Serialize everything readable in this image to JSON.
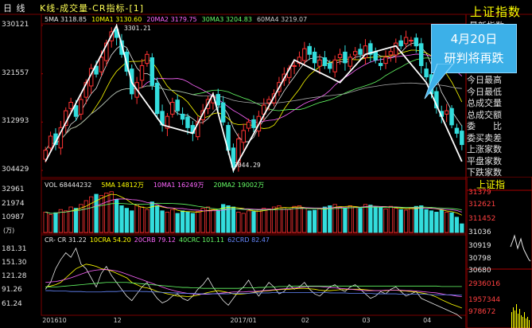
{
  "header": {
    "app_title": "日 线",
    "chart_title": "K线-成交量-CR指标-[1]"
  },
  "ma_legend": [
    {
      "text": "5MA 3118.85",
      "color": "#e8e8e8"
    },
    {
      "text": "10MA1 3130.60",
      "color": "#ffff00"
    },
    {
      "text": "20MA2 3179.75",
      "color": "#ff66ff"
    },
    {
      "text": "30MA3 3204.83",
      "color": "#66ff66"
    },
    {
      "text": "60MA4 3219.07",
      "color": "#cccccc"
    }
  ],
  "vol_legend": [
    {
      "text": "VOL 68444232",
      "color": "#e8e8e8"
    },
    {
      "text": "5MA 14812万",
      "color": "#ffff00"
    },
    {
      "text": "10MA1 16249万",
      "color": "#ff66ff"
    },
    {
      "text": "20MA2 19002万",
      "color": "#66ff66"
    }
  ],
  "cr_legend": [
    {
      "text": "CR- CR 31.22",
      "color": "#e8e8e8"
    },
    {
      "text": "10CRA 54.20",
      "color": "#ffff00"
    },
    {
      "text": "20CRB 79.12",
      "color": "#ff66ff"
    },
    {
      "text": "40CRC 101.11",
      "color": "#66ff66"
    },
    {
      "text": "62CRD 82.47",
      "color": "#6688ff"
    }
  ],
  "callout": {
    "line1": "4月20日",
    "line2": "研判将再跌"
  },
  "index_label": "上证指数",
  "side_info": [
    "今日最高",
    "今日最低",
    "总成交量",
    "总成交额",
    "委　　比",
    "委买卖差",
    "上涨家数",
    "平盘家数",
    "下跌家数"
  ],
  "side_info_top_partial": "最新指数",
  "mini_panel": {
    "title": "上证指",
    "labels": [
      "31379",
      "312621",
      "311452",
      "31036",
      "30919",
      "30798",
      "30680",
      "2936016",
      "1957344",
      "978672"
    ]
  },
  "chart_data": [
    {
      "type": "candlestick",
      "title": "K线",
      "y_ticks": [
        304429,
        312993,
        321557,
        330121
      ],
      "ylim": [
        3044.29,
        3301.21
      ],
      "annotations": [
        {
          "text": "3301.21",
          "x": "2016-11-29",
          "y": 3301.21
        },
        {
          "text": "3044.29",
          "x": "2017-01-16",
          "y": 3044.29
        }
      ],
      "x_ticks": [
        "201610",
        "12",
        "2017/01",
        "02",
        "03",
        "04"
      ],
      "close": [
        3080,
        3105,
        3090,
        3120,
        3150,
        3165,
        3140,
        3170,
        3200,
        3225,
        3215,
        3245,
        3270,
        3290,
        3280,
        3250,
        3220,
        3180,
        3200,
        3230,
        3250,
        3195,
        3145,
        3125,
        3140,
        3165,
        3150,
        3135,
        3120,
        3110,
        3130,
        3150,
        3170,
        3175,
        3160,
        3130,
        3080,
        3050,
        3100,
        3115,
        3130,
        3120,
        3140,
        3160,
        3170,
        3180,
        3200,
        3215,
        3225,
        3230,
        3245,
        3260,
        3250,
        3235,
        3240,
        3230,
        3225,
        3240,
        3250,
        3235,
        3245,
        3255,
        3250,
        3265,
        3250,
        3240,
        3230,
        3245,
        3255,
        3270,
        3265,
        3280,
        3275,
        3265,
        3230,
        3210,
        3180,
        3155,
        3140,
        3150,
        3125,
        3110,
        3090
      ]
    },
    {
      "type": "bar",
      "title": "VOL",
      "y_ticks": [
        10987,
        21974,
        32961
      ],
      "ylim": [
        0,
        35000
      ],
      "unit_label": "(万)",
      "values": [
        16000,
        14000,
        15500,
        18000,
        17000,
        20000,
        19000,
        22000,
        25000,
        28000,
        30000,
        29000,
        31000,
        32000,
        26000,
        21000,
        19000,
        17000,
        22000,
        20000,
        18000,
        24000,
        21000,
        17000,
        16000,
        18000,
        15000,
        17000,
        16000,
        15000,
        16500,
        19000,
        20000,
        18000,
        17500,
        22000,
        21000,
        20000,
        16000,
        15000,
        17000,
        16500,
        18000,
        19000,
        18500,
        20000,
        21000,
        19500,
        18000,
        20500,
        21000,
        19000,
        17000,
        17500,
        18500,
        20000,
        21000,
        22000,
        20000,
        19000,
        21000,
        20000,
        19000,
        22000,
        21500,
        20000,
        19500,
        18500,
        20500,
        19000,
        18000,
        17500,
        19000,
        20500,
        21000,
        18000,
        17000,
        16000,
        17500,
        16000,
        15500,
        12000,
        6800
      ]
    },
    {
      "type": "line",
      "title": "CR",
      "y_ticks": [
        61.24,
        91.26,
        121.28,
        151.3,
        181.31
      ],
      "ylim": [
        45,
        195
      ],
      "series": [
        {
          "name": "CR",
          "color": "#e8e8e8",
          "values": [
            95,
            110,
            140,
            160,
            175,
            165,
            185,
            150,
            140,
            120,
            100,
            130,
            145,
            125,
            110,
            95,
            80,
            70,
            85,
            100,
            110,
            90,
            75,
            65,
            70,
            80,
            85,
            75,
            70,
            80,
            95,
            105,
            120,
            100,
            85,
            70,
            60,
            75,
            90,
            100,
            115,
            95,
            80,
            95,
            110,
            100,
            85,
            90,
            105,
            95,
            100,
            110,
            95,
            85,
            80,
            90,
            100,
            105,
            95,
            90,
            100,
            105,
            95,
            85,
            75,
            80,
            90,
            85,
            95,
            100,
            90,
            80,
            85,
            90,
            75,
            70,
            65,
            60,
            55,
            50,
            45,
            40,
            31
          ]
        },
        {
          "name": "CRA",
          "color": "#ffff00",
          "values": [
            100,
            102,
            105,
            110,
            120,
            130,
            140,
            145,
            150,
            148,
            145,
            140,
            138,
            135,
            130,
            125,
            120,
            110,
            105,
            100,
            98,
            95,
            90,
            88,
            85,
            83,
            80,
            80,
            79,
            80,
            82,
            85,
            88,
            90,
            92,
            90,
            88,
            85,
            84,
            85,
            86,
            88,
            90,
            91,
            92,
            93,
            94,
            95,
            95,
            96,
            97,
            97,
            96,
            95,
            93,
            92,
            92,
            93,
            94,
            94,
            95,
            95,
            95,
            94,
            93,
            92,
            92,
            92,
            93,
            93,
            92,
            91,
            90,
            89,
            87,
            85,
            82,
            78,
            72,
            67,
            62,
            58,
            54
          ]
        },
        {
          "name": "CRB",
          "color": "#ff66ff",
          "values": [
            110,
            111,
            112,
            114,
            117,
            120,
            124,
            128,
            132,
            135,
            137,
            138,
            138,
            137,
            135,
            132,
            128,
            124,
            120,
            116,
            112,
            108,
            104,
            100,
            96,
            93,
            90,
            88,
            86,
            85,
            84,
            84,
            84,
            85,
            86,
            87,
            88,
            89,
            89,
            89,
            90,
            90,
            91,
            92,
            93,
            94,
            95,
            96,
            97,
            98,
            99,
            100,
            101,
            101,
            101,
            100,
            99,
            98,
            97,
            96,
            95,
            94,
            93,
            92,
            92,
            92,
            92,
            93,
            93,
            93,
            93,
            92,
            92,
            91,
            90,
            89,
            88,
            87,
            85,
            83,
            82,
            80,
            79
          ]
        },
        {
          "name": "CRC",
          "color": "#66ff66",
          "values": [
            100,
            100,
            100,
            101,
            102,
            103,
            104,
            105,
            106,
            107,
            108,
            109,
            110,
            110,
            110,
            110,
            110,
            109,
            108,
            107,
            106,
            105,
            104,
            103,
            102,
            101,
            100,
            99,
            99,
            98,
            98,
            97,
            97,
            97,
            97,
            97,
            97,
            97,
            97,
            98,
            98,
            98,
            99,
            99,
            100,
            100,
            101,
            101,
            101,
            102,
            102,
            102,
            102,
            102,
            102,
            102,
            102,
            102,
            102,
            102,
            102,
            102,
            102,
            102,
            102,
            102,
            102,
            102,
            102,
            102,
            102,
            102,
            102,
            102,
            102,
            102,
            102,
            102,
            101,
            101,
            101,
            101,
            101
          ]
        },
        {
          "name": "CRD",
          "color": "#6688ff",
          "values": [
            92,
            92,
            91,
            91,
            91,
            90,
            90,
            90,
            89,
            89,
            89,
            89,
            90,
            90,
            90,
            91,
            91,
            91,
            91,
            90,
            90,
            89,
            89,
            88,
            88,
            87,
            87,
            86,
            86,
            86,
            85,
            85,
            85,
            85,
            85,
            85,
            85,
            86,
            86,
            86,
            86,
            87,
            87,
            87,
            87,
            88,
            88,
            88,
            88,
            88,
            88,
            88,
            88,
            88,
            88,
            88,
            87,
            87,
            87,
            87,
            86,
            86,
            86,
            86,
            86,
            85,
            85,
            85,
            85,
            85,
            84,
            84,
            84,
            84,
            84,
            84,
            83,
            83,
            83,
            83,
            83,
            82,
            82
          ]
        }
      ]
    }
  ]
}
